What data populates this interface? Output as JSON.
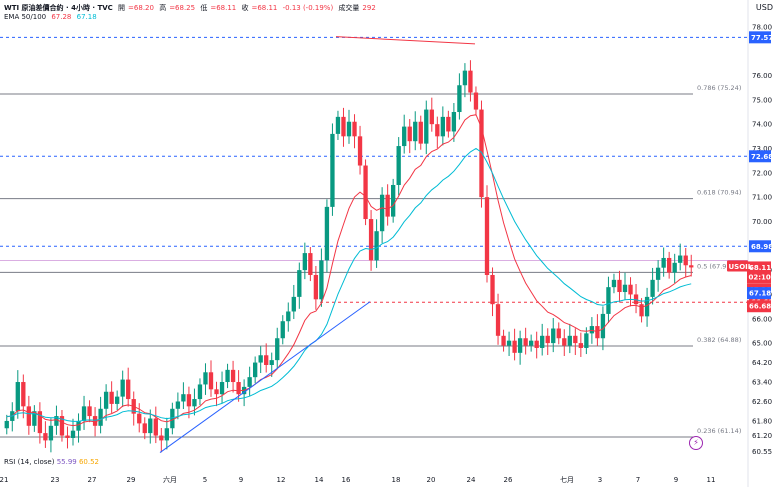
{
  "legend": {
    "title": "WTI 原油差價合約 · 4小時 · TVC",
    "o_label": "開",
    "o_value": "=68.20",
    "h_label": "高",
    "h_value": "=68.25",
    "l_label": "低",
    "l_value": "=68.11",
    "c_label": "收",
    "c_value": "=68.11",
    "change": "-0.13 (-0.19%)",
    "vol_label": "成交量",
    "vol_value": "292",
    "ema_label": "EMA 50/100",
    "ema50": "67.28",
    "ema100": "67.18"
  },
  "rsi": {
    "label": "RSI (14, close)",
    "v1": "55.99",
    "v2": "60.52"
  },
  "currency": "USD",
  "ticker": "USOIL",
  "flash_icon": "lightning-icon",
  "chart_data": {
    "type": "candlestick",
    "y_ticks": [
      "78.00",
      "76.00",
      "75.00",
      "74.00",
      "73.00",
      "72.00",
      "71.00",
      "70.00",
      "69.00",
      "68.00",
      "67.00",
      "66.00",
      "65.00",
      "64.20",
      "63.40",
      "62.60",
      "61.80",
      "61.20",
      "60.55"
    ],
    "x_ticks": [
      "21",
      "23",
      "27",
      "29",
      "六月",
      "5",
      "9",
      "12",
      "14",
      "16",
      "18",
      "20",
      "24",
      "26",
      "七月",
      "3",
      "7",
      "9",
      "11"
    ],
    "ylim": [
      60.4,
      78.2
    ],
    "fib_levels": [
      {
        "label": "0.786 (75.24)",
        "value": 75.24
      },
      {
        "label": "0.618 (70.94)",
        "value": 70.94
      },
      {
        "label": "0.5 (67.91)",
        "value": 67.91
      },
      {
        "label": "0.382 (64.88)",
        "value": 64.88
      },
      {
        "label": "0.236 (61.14)",
        "value": 61.14
      }
    ],
    "dashed_levels": [
      {
        "value": 77.57,
        "label": "77.57",
        "color": "#2962ff"
      },
      {
        "value": 72.68,
        "label": "72.68",
        "color": "#2962ff"
      },
      {
        "value": 68.98,
        "label": "68.98",
        "color": "#2962ff"
      },
      {
        "value": 66.68,
        "label": "66.68",
        "color": "#f23645"
      }
    ],
    "price_badges": [
      {
        "value": 68.11,
        "label": "68.11",
        "sub": "02:10:48",
        "color": "#f23645"
      },
      {
        "value": 67.28,
        "label": "67.28",
        "color": "#f23645"
      },
      {
        "value": 67.18,
        "label": "67.18",
        "color": "#2962ff"
      },
      {
        "value": 66.68,
        "label": "66.68",
        "color": "#f23645"
      }
    ],
    "closes": [
      61.8,
      62.2,
      63.4,
      62.4,
      61.6,
      62.2,
      61.3,
      61.0,
      61.6,
      62.0,
      61.2,
      61.1,
      61.4,
      61.8,
      62.4,
      62.0,
      61.6,
      62.3,
      63.0,
      62.5,
      62.8,
      63.5,
      62.7,
      62.1,
      61.7,
      61.3,
      61.9,
      61.2,
      61.0,
      61.5,
      62.3,
      62.6,
      62.9,
      62.4,
      62.7,
      63.3,
      63.8,
      63.1,
      62.9,
      63.4,
      63.9,
      63.4,
      62.9,
      63.2,
      63.6,
      64.2,
      64.5,
      64.1,
      64.3,
      65.2,
      65.9,
      66.3,
      66.9,
      68.0,
      68.7,
      67.8,
      66.8,
      68.4,
      70.6,
      73.6,
      74.3,
      73.5,
      74.1,
      73.5,
      72.3,
      70.1,
      68.4,
      69.6,
      71.1,
      70.2,
      71.5,
      73.1,
      73.9,
      73.3,
      74.1,
      73.2,
      74.6,
      74.0,
      73.5,
      74.3,
      73.7,
      74.5,
      75.6,
      76.2,
      75.3,
      74.6,
      71.0,
      67.8,
      66.6,
      65.3,
      64.9,
      65.1,
      64.6,
      65.2,
      64.9,
      65.1,
      64.8,
      65.3,
      65.0,
      65.6,
      65.2,
      64.9,
      65.3,
      65.0,
      64.8,
      65.4,
      65.7,
      65.2,
      66.2,
      67.3,
      67.6,
      67.1,
      67.4,
      67.0,
      66.6,
      66.1,
      66.9,
      67.6,
      68.1,
      68.5,
      67.9,
      68.3,
      68.6,
      68.2,
      68.11
    ],
    "series": [
      {
        "name": "EMA 50",
        "color": "#f23645"
      },
      {
        "name": "EMA 100",
        "color": "#00bcd4"
      }
    ]
  }
}
